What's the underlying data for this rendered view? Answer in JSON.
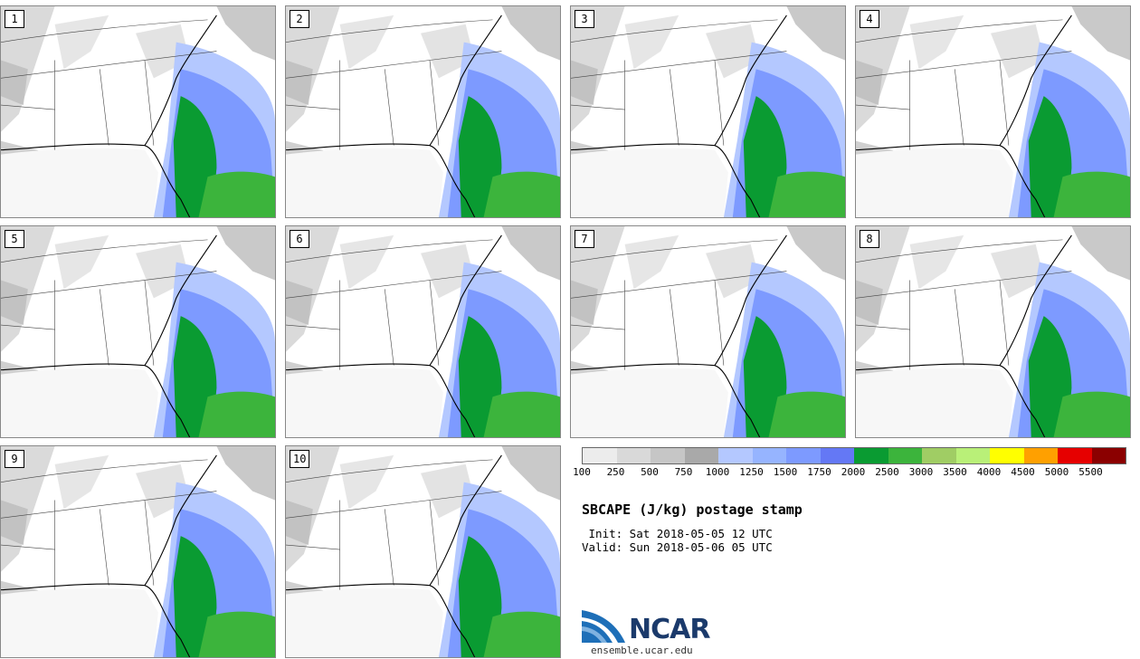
{
  "panels": [
    {
      "label": "1"
    },
    {
      "label": "2"
    },
    {
      "label": "3"
    },
    {
      "label": "4"
    },
    {
      "label": "5"
    },
    {
      "label": "6"
    },
    {
      "label": "7"
    },
    {
      "label": "8"
    },
    {
      "label": "9"
    },
    {
      "label": "10"
    }
  ],
  "legend": {
    "ticks": [
      "100",
      "250",
      "500",
      "750",
      "1000",
      "1250",
      "1500",
      "1750",
      "2000",
      "2500",
      "3000",
      "3500",
      "4000",
      "4500",
      "5000",
      "5500"
    ],
    "colors": [
      "#ececec",
      "#d9d9d9",
      "#c6c6c6",
      "#a9a9a9",
      "#b4c8ff",
      "#96b4ff",
      "#7d9aff",
      "#6478f5",
      "#0a9b32",
      "#3cb43c",
      "#a0cd64",
      "#b9f078",
      "#ffff00",
      "#ffa000",
      "#e60000",
      "#8b0000"
    ]
  },
  "title": "SBCAPE (J/kg) postage stamp",
  "init_line": " Init: Sat 2018-05-05 12 UTC",
  "valid_line": "Valid: Sun 2018-05-06 05 UTC",
  "logo": {
    "text": "NCAR",
    "url": "ensemble.ucar.edu"
  }
}
